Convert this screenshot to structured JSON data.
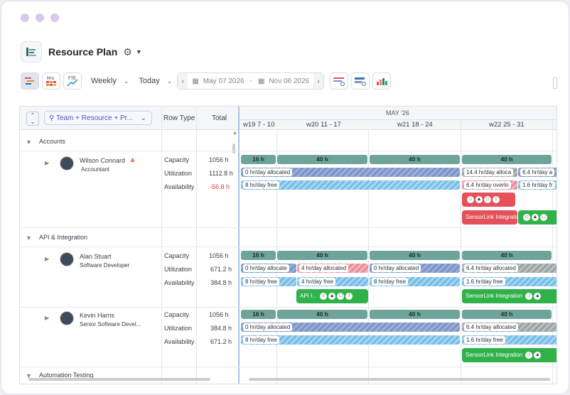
{
  "app": {
    "title": "Resource Plan"
  },
  "toolbar": {
    "view_select": "Weekly",
    "quick_select": "Today",
    "date_from": "May 07 2026",
    "date_separator": "-",
    "date_to": "Nov 06 2026",
    "hrs_icon_label": "Hrs",
    "fte_icon_label": "FTE"
  },
  "grid": {
    "group_by": "Team + Resource + Pr...",
    "col_row_type": "Row Type",
    "col_total": "Total",
    "month": "MAY '26",
    "weeks": [
      "w19  7 - 10",
      "w20  11 - 17",
      "w21  18 - 24",
      "w22  25 - 31"
    ]
  },
  "rows": {
    "accounts": "Accounts",
    "api": "API & Integration",
    "automation": "Automation Testing",
    "capacity": "Capacity",
    "utilization": "Utilization",
    "availability": "Availability",
    "wilson": {
      "name": "Wilson Connard",
      "role": "Accountant",
      "cap_total": "1056 h",
      "util_total": "1112.8 h",
      "avail_total": "-56.8 h"
    },
    "alan": {
      "name": "Alan Stuart",
      "role": "Software Developer",
      "cap_total": "1056 h",
      "util_total": "671.2 h",
      "avail_total": "384.8 h"
    },
    "kevin": {
      "name": "Kevin Harris",
      "role": "Senior Software Devel...",
      "cap_total": "1056 h",
      "util_total": "384.8 h",
      "avail_total": "671.2 h"
    }
  },
  "bars": {
    "cap16": "16 h",
    "cap40": "40 h",
    "zero_alloc": "0 hr/day allocated",
    "zero_alloc_trunc": "0 hr/day allocate",
    "four_alloc": "4 hr/day allocated",
    "six_alloc": "6.4 hr/day allocated",
    "six_alloc_trunc": "6.4 hr/day a",
    "fourteen_alloc": "14.4 hr/day alloca",
    "six_over": "6.4 hr/day overlo",
    "eight_free": "8 hr/day free",
    "four_free": "4 hr/day free",
    "one_six_free": "1.6 hr/day free",
    "one_six_free_trunc": "1.6 hr/day fr",
    "sensorlink": "SensorLink Integration",
    "api_task": "API I..."
  },
  "colors": {
    "capacity": "#6fa49b",
    "task_red": "#e4515a",
    "task_green": "#2fb24a",
    "negative": "#d33a3a"
  }
}
